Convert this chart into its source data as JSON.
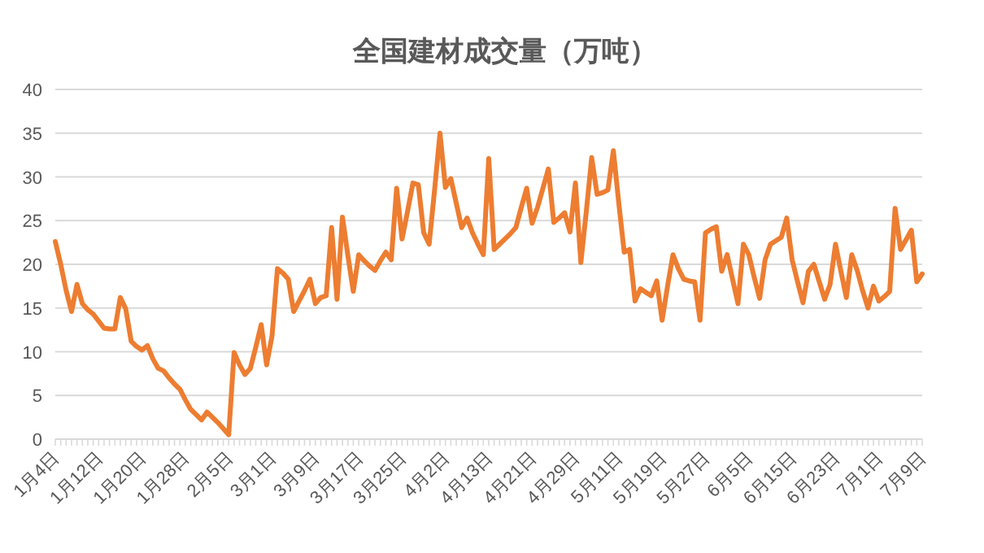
{
  "chart_data": {
    "type": "line",
    "title": "全国建材成交量（万吨）",
    "categories": [
      "1月4日",
      null,
      null,
      null,
      null,
      null,
      null,
      null,
      "1月12日",
      null,
      null,
      null,
      null,
      null,
      null,
      null,
      "1月20日",
      null,
      null,
      null,
      null,
      null,
      null,
      null,
      "1月28日",
      null,
      null,
      null,
      null,
      null,
      null,
      null,
      "2月5日",
      null,
      null,
      null,
      null,
      null,
      null,
      null,
      "3月1日",
      null,
      null,
      null,
      null,
      null,
      null,
      null,
      "3月9日",
      null,
      null,
      null,
      null,
      null,
      null,
      null,
      "3月17日",
      null,
      null,
      null,
      null,
      null,
      null,
      null,
      "3月25日",
      null,
      null,
      null,
      null,
      null,
      null,
      null,
      "4月2日",
      null,
      null,
      null,
      null,
      null,
      null,
      null,
      "4月13日",
      null,
      null,
      null,
      null,
      null,
      null,
      null,
      "4月21日",
      null,
      null,
      null,
      null,
      null,
      null,
      null,
      "4月29日",
      null,
      null,
      null,
      null,
      null,
      null,
      null,
      "5月11日",
      null,
      null,
      null,
      null,
      null,
      null,
      null,
      "5月19日",
      null,
      null,
      null,
      null,
      null,
      null,
      null,
      "5月27日",
      null,
      null,
      null,
      null,
      null,
      null,
      null,
      "6月5日",
      null,
      null,
      null,
      null,
      null,
      null,
      null,
      "6月15日",
      null,
      null,
      null,
      null,
      null,
      null,
      null,
      "6月23日",
      null,
      null,
      null,
      null,
      null,
      null,
      null,
      "7月1日",
      null,
      null,
      null,
      null,
      null,
      null,
      null,
      "7月9日"
    ],
    "series": [
      {
        "color": "#ed7d31",
        "values": [
          22.6,
          20.0,
          17.0,
          14.6,
          17.7,
          15.5,
          14.8,
          14.3,
          13.5,
          12.7,
          12.6,
          12.6,
          16.2,
          14.9,
          11.2,
          10.6,
          10.2,
          10.7,
          9.2,
          8.1,
          7.8,
          7.0,
          6.3,
          5.7,
          4.5,
          3.4,
          2.8,
          2.2,
          3.1,
          2.5,
          1.9,
          1.2,
          0.5,
          9.9,
          8.5,
          7.4,
          8.1,
          10.5,
          13.1,
          8.5,
          11.8,
          19.5,
          19.0,
          18.3,
          14.6,
          15.8,
          17.0,
          18.3,
          15.5,
          16.2,
          16.4,
          24.2,
          16.0,
          25.4,
          21.0,
          16.9,
          21.1,
          20.4,
          19.8,
          19.3,
          20.4,
          21.4,
          20.5,
          28.7,
          22.9,
          26.0,
          29.3,
          29.1,
          23.6,
          22.3,
          28.5,
          35.0,
          28.8,
          29.8,
          27.0,
          24.2,
          25.3,
          23.6,
          22.3,
          21.1,
          32.1,
          21.7,
          22.3,
          22.9,
          23.5,
          24.2,
          26.5,
          28.7,
          24.7,
          26.5,
          28.7,
          30.9,
          24.8,
          25.3,
          25.9,
          23.7,
          29.3,
          20.2,
          26.0,
          32.2,
          28.0,
          28.2,
          28.5,
          33.0,
          27.0,
          21.4,
          21.7,
          15.8,
          17.2,
          16.8,
          16.4,
          18.1,
          13.6,
          17.5,
          21.1,
          19.5,
          18.3,
          18.1,
          18.0,
          13.6,
          23.6,
          24.0,
          24.3,
          19.2,
          21.1,
          18.3,
          15.5,
          22.3,
          21.1,
          18.5,
          16.1,
          20.5,
          22.3,
          22.7,
          23.1,
          25.3,
          20.5,
          18.0,
          15.6,
          19.2,
          20.0,
          18.0,
          16.0,
          17.7,
          22.3,
          19.2,
          16.2,
          21.1,
          19.3,
          17.0,
          15.0,
          17.5,
          15.8,
          16.3,
          16.9,
          26.4,
          21.7,
          22.8,
          23.9,
          18.0,
          18.9
        ]
      }
    ],
    "ylim": [
      0,
      40
    ],
    "yticks": [
      0,
      5,
      10,
      15,
      20,
      25,
      30,
      35,
      40
    ],
    "grid": "y",
    "marker": "none",
    "line_style": "solid"
  }
}
